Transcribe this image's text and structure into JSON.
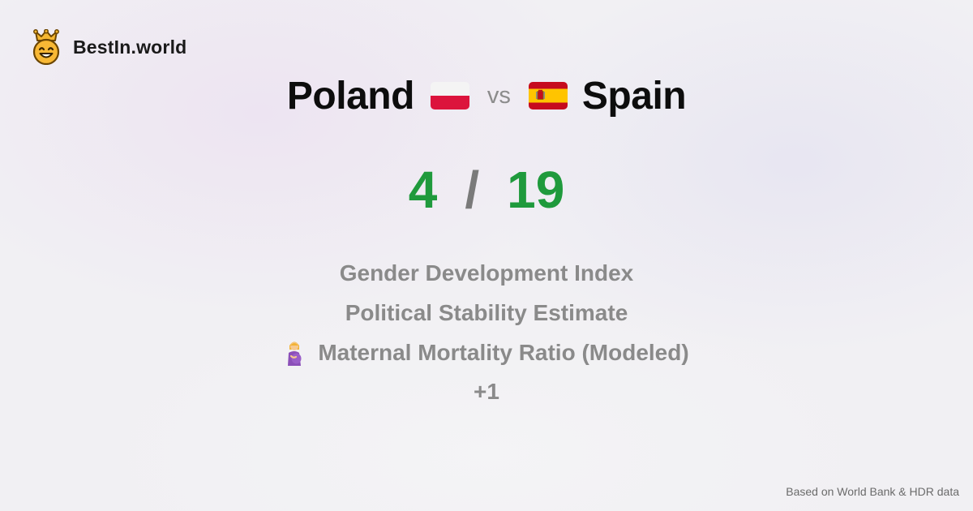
{
  "brand": {
    "name": "BestIn.world",
    "icon": "crowned-smiley-icon",
    "icon_color": "#f5b731"
  },
  "comparison": {
    "left_country": "Poland",
    "left_flag_icon": "poland-flag-icon",
    "vs_label": "vs",
    "right_country": "Spain",
    "right_flag_icon": "spain-flag-icon"
  },
  "score": {
    "left": "4",
    "separator": "/",
    "right": "19",
    "color": "#1f9a3c"
  },
  "metrics": [
    {
      "label": "Gender Development Index"
    },
    {
      "label": "Political Stability Estimate"
    },
    {
      "label": "Maternal Mortality Ratio (Modeled)",
      "icon": "pregnant-woman-icon"
    }
  ],
  "more_label": "+1",
  "footer": {
    "source": "Based on World Bank & HDR data"
  }
}
